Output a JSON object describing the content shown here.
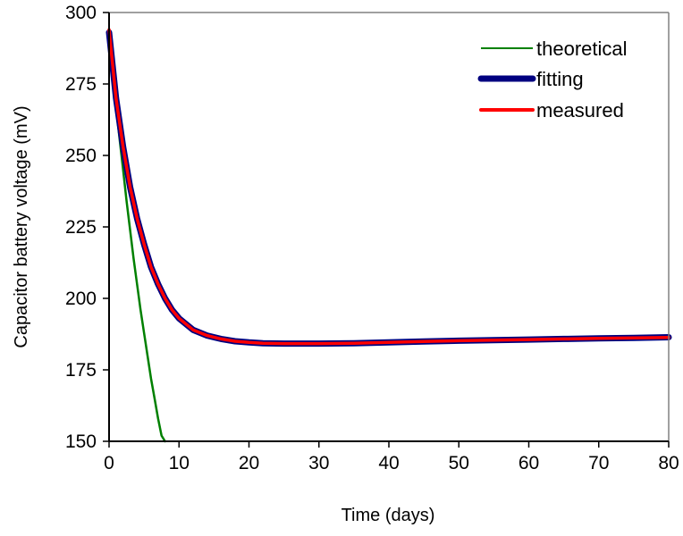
{
  "chart_data": {
    "type": "line",
    "title": "",
    "xlabel": "Time (days)",
    "ylabel": "Capacitor battery voltage (mV)",
    "xlim": [
      0,
      80
    ],
    "ylim": [
      150,
      300
    ],
    "x_ticks": [
      0,
      10,
      20,
      30,
      40,
      50,
      60,
      70,
      80
    ],
    "y_ticks": [
      150,
      175,
      200,
      225,
      250,
      275,
      300
    ],
    "x_tick_labels": [
      "0",
      "10",
      "20",
      "30",
      "40",
      "50",
      "60",
      "70",
      "80"
    ],
    "y_tick_labels": [
      "150",
      "175",
      "200",
      "225",
      "250",
      "275",
      "300"
    ],
    "grid": false,
    "legend_position": "top-right",
    "series": [
      {
        "name": "theoretical",
        "color": "#008000",
        "x": [
          0,
          0.5,
          1,
          1.5,
          2,
          2.5,
          3,
          3.5,
          4,
          4.5,
          5,
          5.5,
          6,
          6.5,
          7,
          7.5,
          8
        ],
        "y": [
          292,
          279,
          267,
          256,
          245,
          234,
          224,
          214,
          205,
          196,
          188,
          180,
          172,
          165,
          158,
          152,
          150
        ]
      },
      {
        "name": "fitting",
        "color": "#000080",
        "x": [
          0,
          1,
          2,
          3,
          4,
          5,
          6,
          7,
          8,
          9,
          10,
          12,
          14,
          16,
          18,
          20,
          22,
          25,
          30,
          35,
          40,
          45,
          50,
          55,
          60,
          65,
          70,
          75,
          80
        ],
        "y": [
          293,
          270,
          253,
          239,
          228,
          219,
          211,
          205,
          200,
          196,
          193,
          189,
          187,
          185.8,
          185,
          184.6,
          184.3,
          184.2,
          184.2,
          184.3,
          184.6,
          184.9,
          185.2,
          185.4,
          185.6,
          185.8,
          186.0,
          186.2,
          186.4
        ]
      },
      {
        "name": "measured",
        "color": "#ff0000",
        "x": [
          0,
          1,
          2,
          3,
          4,
          5,
          6,
          7,
          8,
          9,
          10,
          12,
          14,
          16,
          18,
          20,
          22,
          25,
          30,
          35,
          40,
          45,
          50,
          55,
          60,
          65,
          70,
          75,
          80
        ],
        "y": [
          294,
          270,
          253,
          239,
          228,
          219,
          211,
          205,
          200,
          196,
          193,
          189,
          187,
          185.8,
          185,
          184.6,
          184.3,
          184.2,
          184.2,
          184.3,
          184.6,
          184.9,
          185.2,
          185.4,
          185.6,
          185.8,
          186.0,
          186.2,
          186.3
        ]
      }
    ]
  }
}
